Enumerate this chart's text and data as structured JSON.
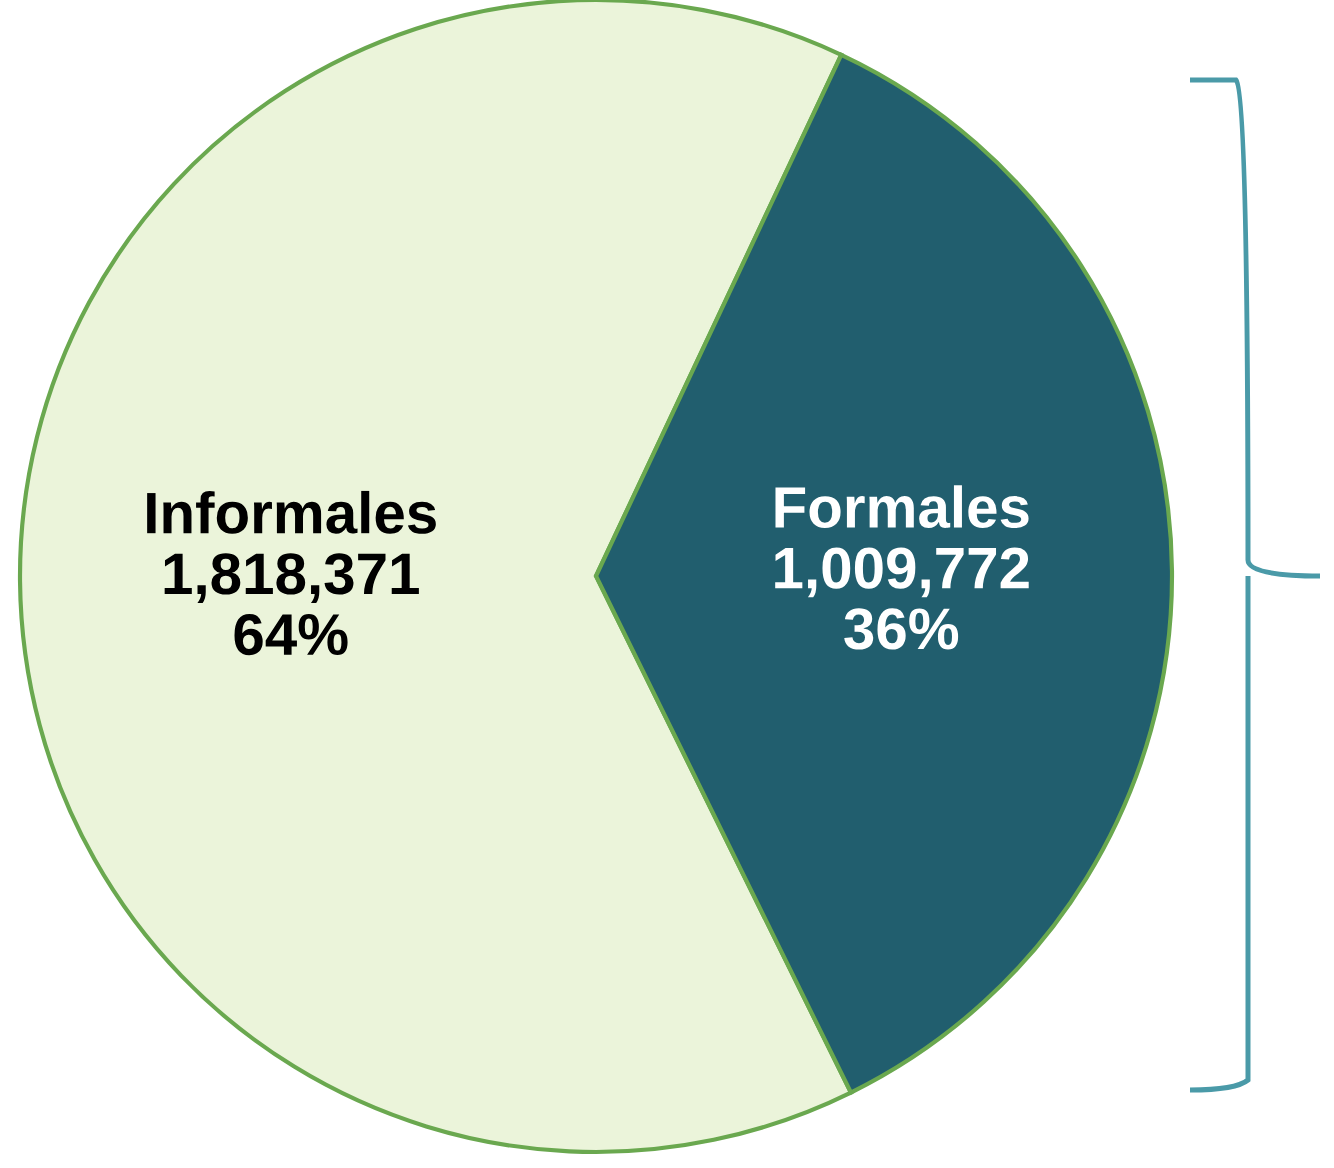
{
  "chart_data": {
    "type": "pie",
    "categories": [
      "Informales",
      "Formales"
    ],
    "values": [
      1818371,
      1009772
    ],
    "value_labels": [
      "1,818,371\n64%",
      "1,009,772\n36%"
    ],
    "colors": [
      "#ebf4da",
      "#215e6e"
    ],
    "legend": false
  }
}
